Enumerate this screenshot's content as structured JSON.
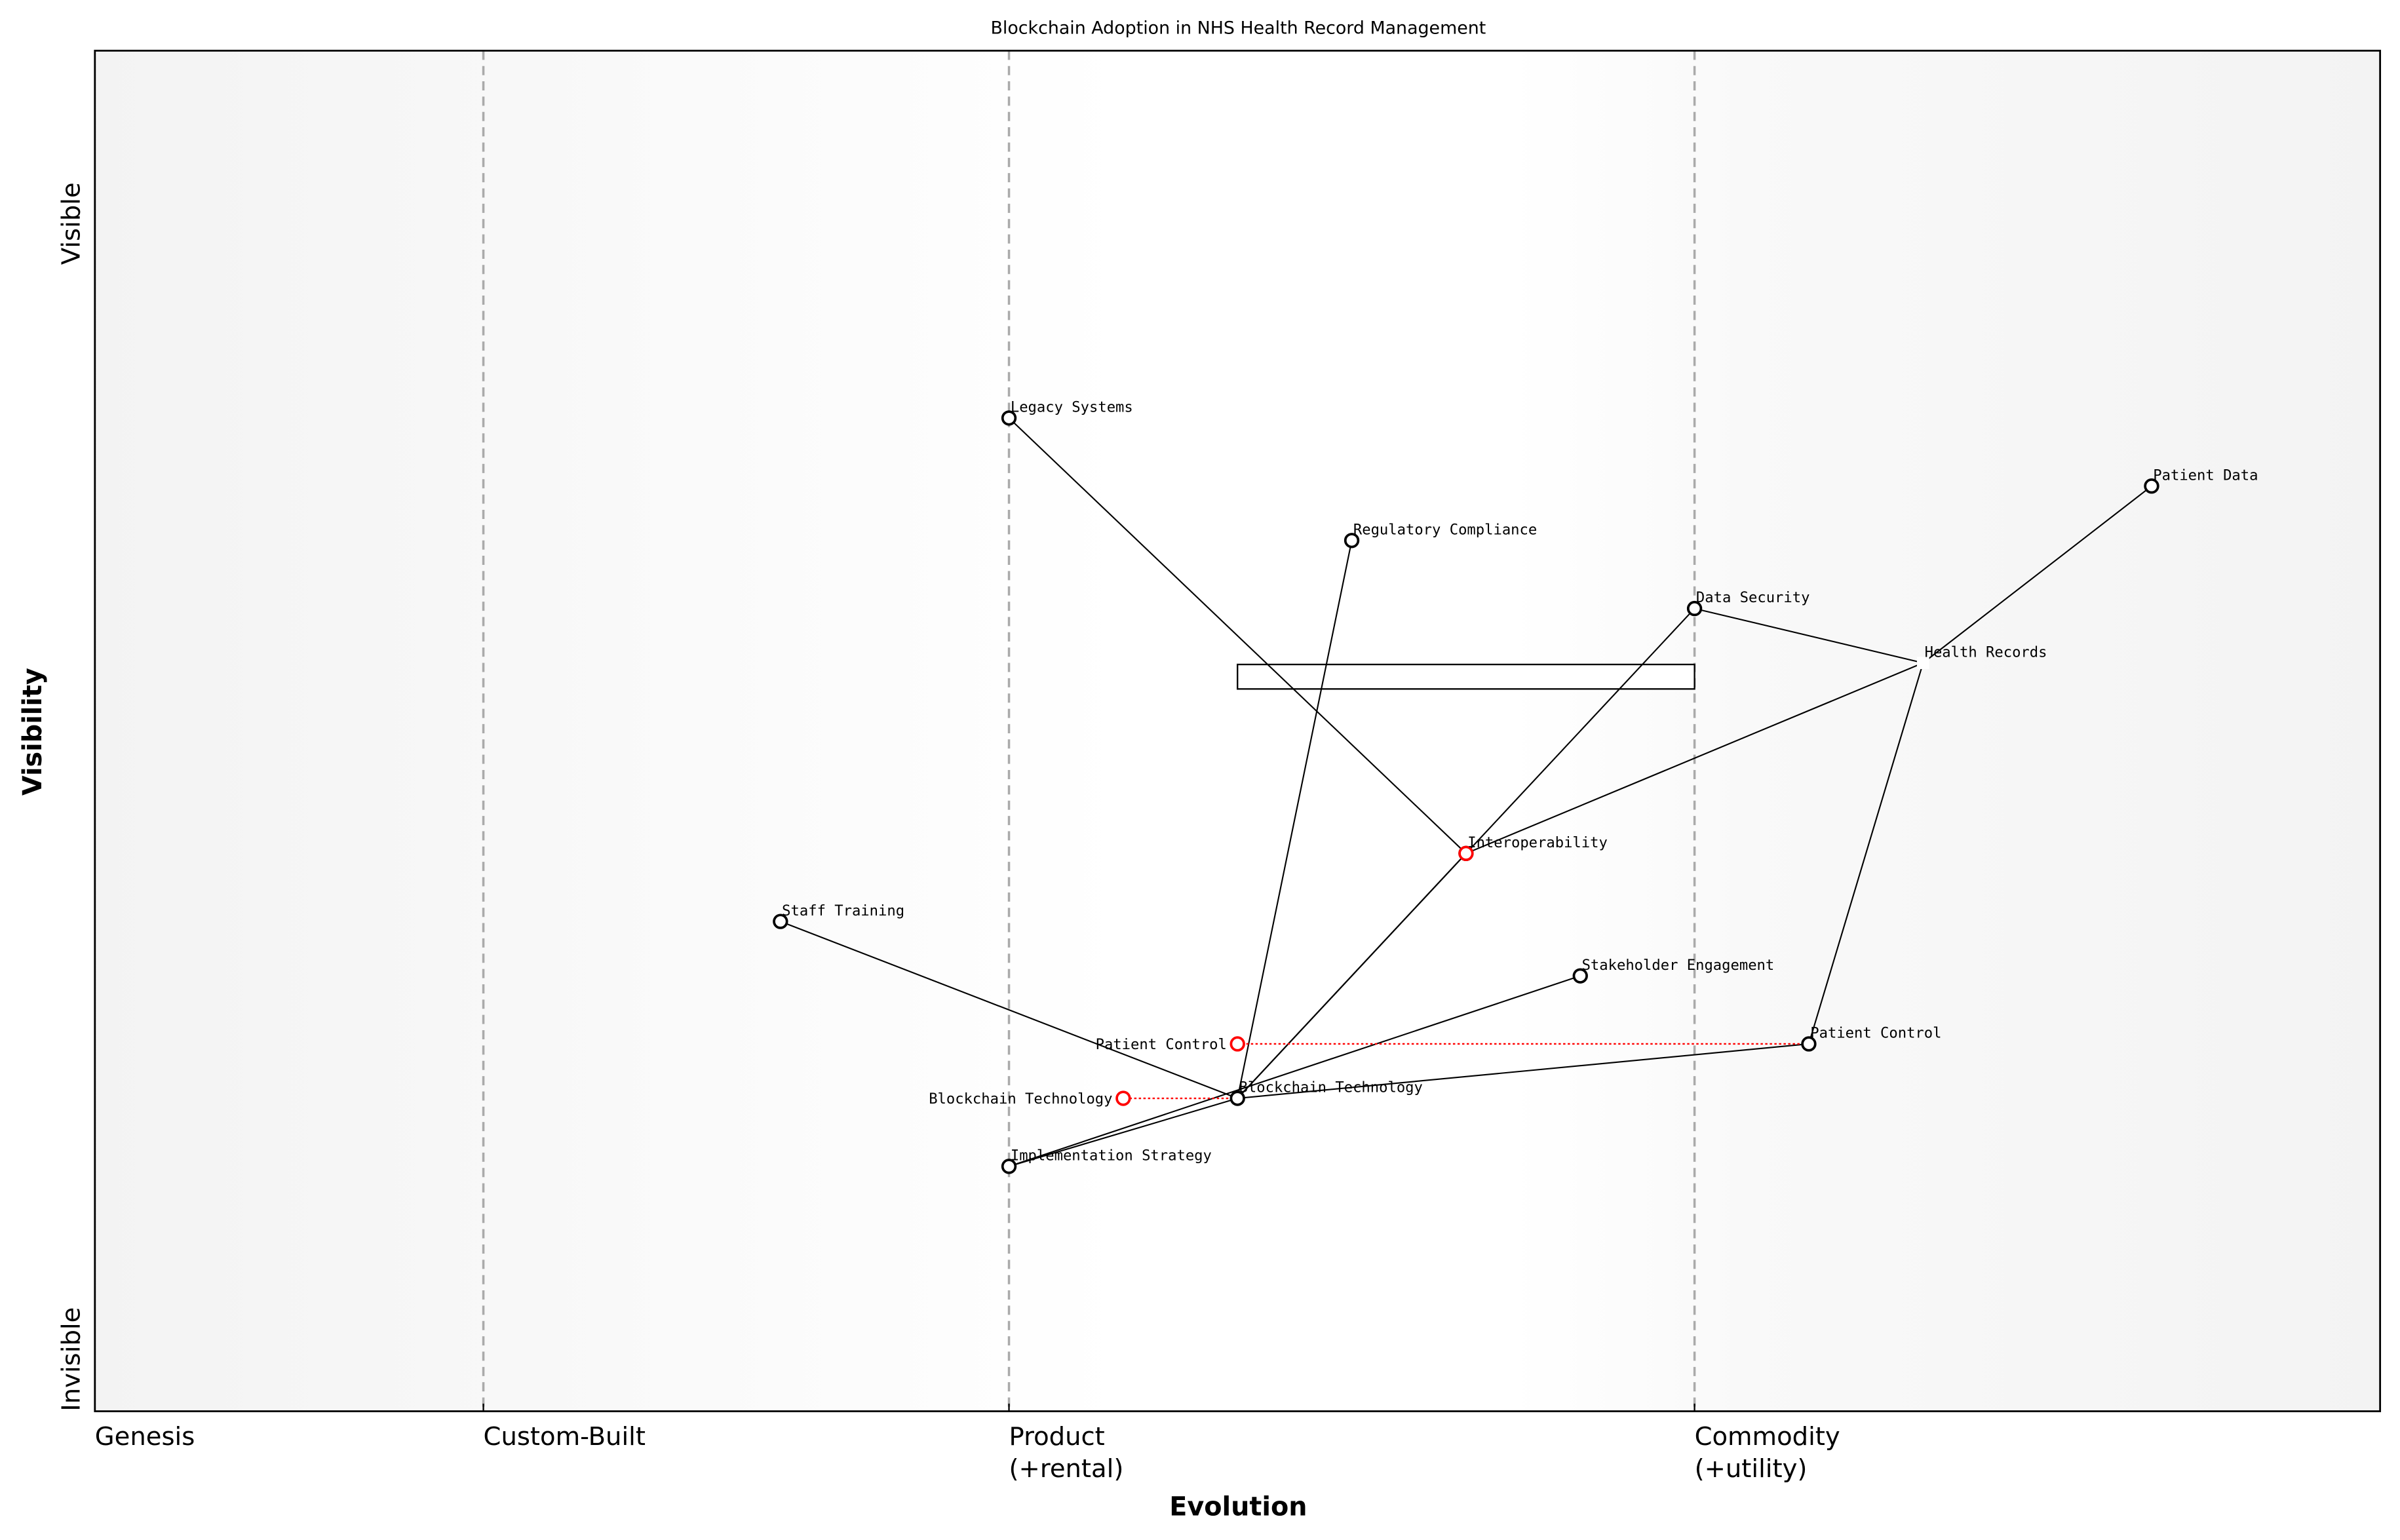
{
  "chart_data": {
    "type": "wardley-map",
    "title": "Blockchain Adoption in NHS Health Record Management",
    "xlabel": "Evolution",
    "ylabel": "Visibility",
    "xlim": [
      0,
      1
    ],
    "ylim": [
      0,
      1
    ],
    "x_stages": [
      {
        "label": "Genesis",
        "x": 0.0
      },
      {
        "label": "Custom-Built",
        "x": 0.17
      },
      {
        "label": "Product\n(+rental)",
        "x": 0.4
      },
      {
        "label": "Commodity\n(+utility)",
        "x": 0.7
      }
    ],
    "y_labels": {
      "top": "Visible",
      "bottom": "Invisible"
    },
    "colors": {
      "node": "#000000",
      "evolve": "#ff0000",
      "stage_line": "#aaaaaa",
      "edge": "#000000"
    },
    "components": [
      {
        "name": "Health Records",
        "x": 0.8,
        "y": 0.55,
        "marker": "anchor"
      },
      {
        "name": "Patient Data",
        "x": 0.9,
        "y": 0.68
      },
      {
        "name": "Legacy Systems",
        "x": 0.4,
        "y": 0.73
      },
      {
        "name": "Regulatory Compliance",
        "x": 0.55,
        "y": 0.64
      },
      {
        "name": "Data Security",
        "x": 0.7,
        "y": 0.59
      },
      {
        "name": "Interoperability",
        "x": 0.6,
        "y": 0.41
      },
      {
        "name": "Staff Training",
        "x": 0.3,
        "y": 0.36
      },
      {
        "name": "Stakeholder Engagement",
        "x": 0.65,
        "y": 0.32
      },
      {
        "name": "Patient Control",
        "x": 0.75,
        "y": 0.27
      },
      {
        "name": "Blockchain Technology",
        "x": 0.5,
        "y": 0.23
      },
      {
        "name": "Implementation Strategy",
        "x": 0.4,
        "y": 0.18
      }
    ],
    "links": [
      [
        "Health Records",
        "Patient Data"
      ],
      [
        "Health Records",
        "Data Security"
      ],
      [
        "Health Records",
        "Interoperability"
      ],
      [
        "Health Records",
        "Patient Control"
      ],
      [
        "Legacy Systems",
        "Interoperability"
      ],
      [
        "Interoperability",
        "Blockchain Technology"
      ],
      [
        "Data Security",
        "Blockchain Technology"
      ],
      [
        "Regulatory Compliance",
        "Blockchain Technology"
      ],
      [
        "Staff Training",
        "Blockchain Technology"
      ],
      [
        "Patient Control",
        "Blockchain Technology"
      ],
      [
        "Implementation Strategy",
        "Blockchain Technology"
      ],
      [
        "Implementation Strategy",
        "Stakeholder Engagement"
      ]
    ],
    "evolutions": [
      {
        "name": "Interoperability",
        "from_x": 0.6,
        "to_x": 0.6,
        "y": 0.41
      },
      {
        "name": "Patient Control",
        "from_x": 0.75,
        "to_x": 0.5,
        "y": 0.27
      },
      {
        "name": "Blockchain Technology",
        "from_x": 0.5,
        "to_x": 0.45,
        "y": 0.23
      }
    ],
    "pipeline": {
      "x_start": 0.5,
      "x_end": 0.7,
      "y": 0.55
    },
    "grid": false
  }
}
